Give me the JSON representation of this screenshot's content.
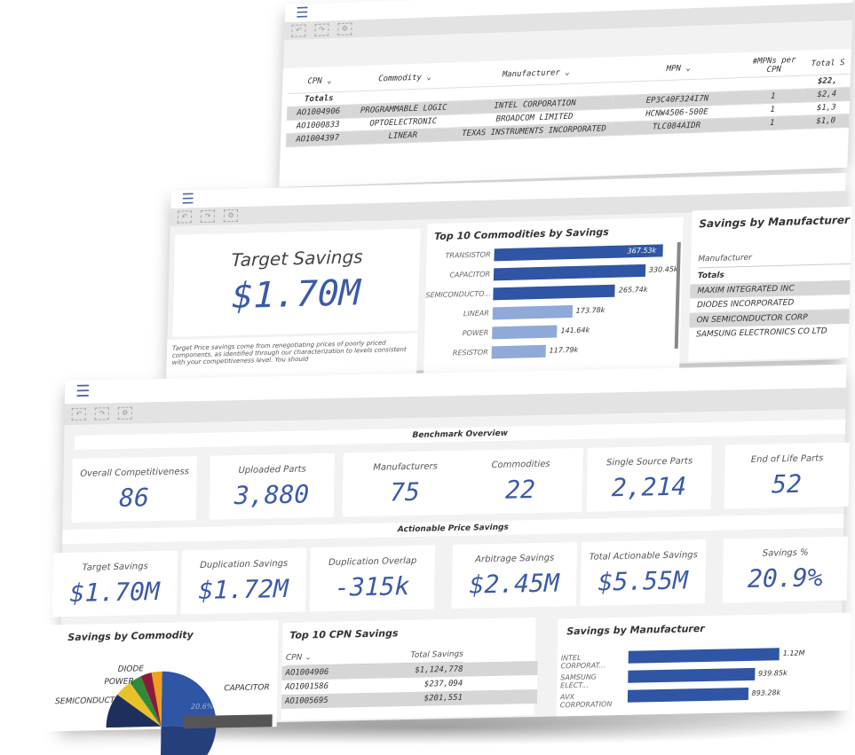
{
  "screen1": {
    "headers": [
      "CPN",
      "Commodity",
      "Manufacturer",
      "MPN",
      "#MPNs per CPN",
      "Total S"
    ],
    "totals_label": "Totals",
    "totals_value": "$22,",
    "rows": [
      {
        "cpn": "AO1004906",
        "commodity": "PROGRAMMABLE LOGIC",
        "manufacturer": "INTEL CORPORATION",
        "mpn": "EP3C40F324I7N",
        "mpns": "1",
        "total": "$2,4"
      },
      {
        "cpn": "AO1000833",
        "commodity": "OPTOELECTRONIC",
        "manufacturer": "BROADCOM LIMITED",
        "mpn": "HCNW4506-500E",
        "mpns": "1",
        "total": "$1,3"
      },
      {
        "cpn": "AO1004397",
        "commodity": "LINEAR",
        "manufacturer": "TEXAS INSTRUMENTS INCORPORATED",
        "mpn": "TLC084AIDR",
        "mpns": "1",
        "total": "$1,0"
      }
    ]
  },
  "screen2": {
    "target_label": "Target Savings",
    "target_value": "$1.70M",
    "target_desc": "Target Price savings come from renegotiating prices of poorly priced components, as identified through our characterization to levels consistent with your competitiveness level. You should",
    "commodities_title": "Top 10 Commodities by Savings",
    "commodities": [
      {
        "label": "TRANSISTOR",
        "value": "367.53k",
        "num": 367.53
      },
      {
        "label": "CAPACITOR",
        "value": "330.45k",
        "num": 330.45
      },
      {
        "label": "SEMICONDUCTO...",
        "value": "265.74k",
        "num": 265.74
      },
      {
        "label": "LINEAR",
        "value": "173.78k",
        "num": 173.78
      },
      {
        "label": "POWER",
        "value": "141.64k",
        "num": 141.64
      },
      {
        "label": "RESISTOR",
        "value": "117.79k",
        "num": 117.79
      }
    ],
    "manuf_title": "Savings by Manufacturer",
    "manuf_header": "Manufacturer",
    "manuf_totals": "Totals",
    "manuf_rows": [
      "MAXIM INTEGRATED INC",
      "DIODES INCORPORATED",
      "ON SEMICONDUCTOR CORP",
      "SAMSUNG ELECTRONICS CO LTD"
    ]
  },
  "screen3": {
    "benchmark_title": "Benchmark Overview",
    "kpis": [
      {
        "label": "Overall Competitiveness",
        "value": "86"
      },
      {
        "label": "Uploaded Parts",
        "value": "3,880"
      },
      {
        "label": "Manufacturers",
        "value": "75"
      },
      {
        "label": "Commodities",
        "value": "22"
      },
      {
        "label": "Single Source Parts",
        "value": "2,214"
      },
      {
        "label": "End of Life Parts",
        "value": "52"
      }
    ],
    "actionable_title": "Actionable Price Savings",
    "savings": [
      {
        "label": "Target Savings",
        "value": "$1.70M"
      },
      {
        "label": "Duplication Savings",
        "value": "$1.72M"
      },
      {
        "label": "Duplication Overlap",
        "value": "-315k"
      },
      {
        "label": "Arbitrage Savings",
        "value": "$2.45M"
      },
      {
        "label": "Total Actionable Savings",
        "value": "$5.55M"
      },
      {
        "label": "Savings %",
        "value": "20.9%"
      }
    ],
    "pie_title": "Savings by Commodity",
    "pie_labels": [
      "DIODE",
      "POWER",
      "SEMICONDUCT...",
      "CAPACITOR"
    ],
    "pie_value": "20.6%",
    "cpn_title": "Top 10 CPN Savings",
    "cpn_headers": [
      "CPN",
      "Total Savings"
    ],
    "cpn_rows": [
      {
        "cpn": "AO1004906",
        "value": "$1,124,778"
      },
      {
        "cpn": "AO1001586",
        "value": "$237,094"
      },
      {
        "cpn": "AO1005695",
        "value": "$201,551"
      }
    ],
    "manuf_title": "Savings by Manufacturer",
    "manuf_bars": [
      {
        "label": "INTEL CORPORAT...",
        "value": "1.12M",
        "num": 1.12
      },
      {
        "label": "SAMSUNG ELECT...",
        "value": "939.85k",
        "num": 0.93985
      },
      {
        "label": "AVX CORPORATION",
        "value": "893.28k",
        "num": 0.89328
      }
    ]
  },
  "icons": {
    "menu": "hamburger-icon",
    "back": "back-icon",
    "forward": "forward-icon",
    "settings": "settings-icon"
  },
  "colors": {
    "accent": "#3b5aa7",
    "bar_dark": "#2f55a4",
    "bar_light": "#8fa9d8",
    "toolbar": "#e3e3e3"
  }
}
